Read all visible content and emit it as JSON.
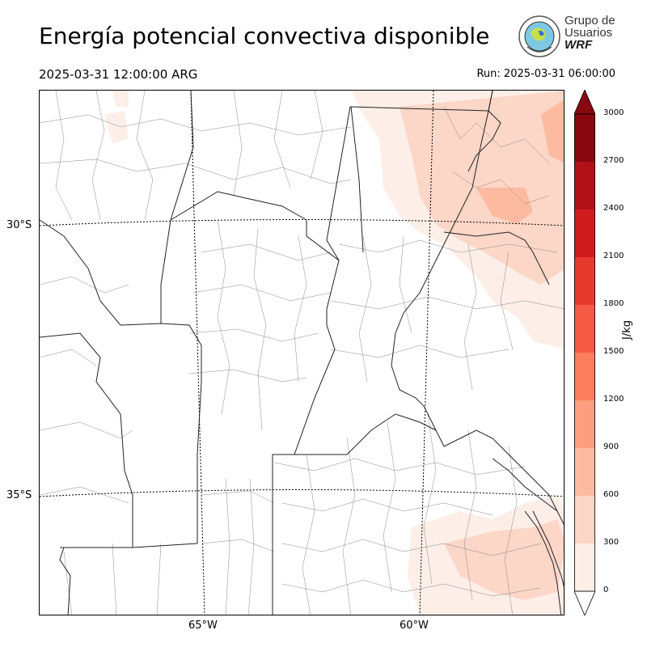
{
  "title": "Energía potencial convectiva disponible",
  "valid_time": "2025-03-31 12:00:00 ARG",
  "run_time": "Run: 2025-03-31 06:00:00",
  "logo": {
    "line1": "Grupo de",
    "line2": "Usuarios",
    "line3": "WRF"
  },
  "map": {
    "lat_labels": [
      "30°S",
      "35°S"
    ],
    "lon_labels": [
      "65°W",
      "60°W"
    ]
  },
  "colorbar": {
    "unit": "J/kg",
    "ticks": [
      "0",
      "300",
      "600",
      "900",
      "1200",
      "1500",
      "1800",
      "2100",
      "2400",
      "2700",
      "3000"
    ],
    "colors": [
      "#fdeee8",
      "#fcd6c7",
      "#fcbba1",
      "#fc9e80",
      "#fb7e5e",
      "#f45a44",
      "#e8392e",
      "#cf1c1f",
      "#b11117",
      "#870811"
    ]
  }
}
